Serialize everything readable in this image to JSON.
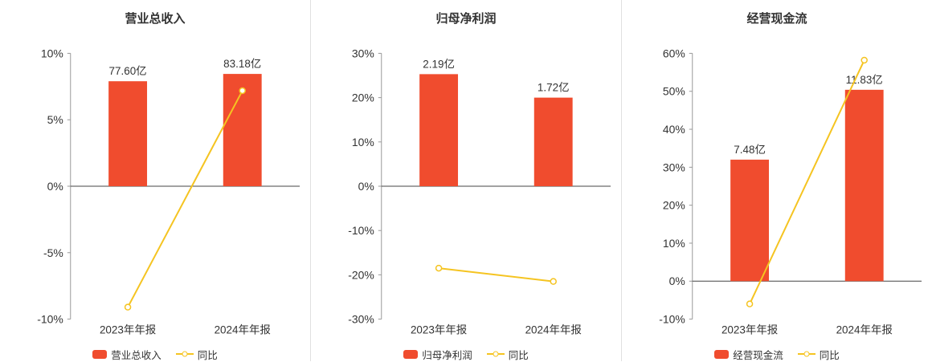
{
  "colors": {
    "bar": "#f04c2e",
    "line": "#f5c421",
    "text": "#333333",
    "axis": "#999999",
    "zero_line": "#444444",
    "divider": "#e0e0e0",
    "background": "#ffffff"
  },
  "chart_data": [
    {
      "type": "bar",
      "title": "营业总收入",
      "categories": [
        "2023年年报",
        "2024年年报"
      ],
      "bar_series": {
        "name": "营业总收入",
        "unit": "亿",
        "values": [
          77.6,
          83.18
        ],
        "labels": [
          "77.60亿",
          "83.18亿"
        ],
        "plotted_axis_pct": [
          7.9,
          8.45
        ]
      },
      "line_series": {
        "name": "同比",
        "values_pct": [
          -9.1,
          7.19
        ]
      },
      "ylim": [
        -10,
        10
      ],
      "yticks_pct": [
        10,
        5,
        0,
        -5,
        -10
      ],
      "grid": false,
      "legend_position": "bottom"
    },
    {
      "type": "bar",
      "title": "归母净利润",
      "categories": [
        "2023年年报",
        "2024年年报"
      ],
      "bar_series": {
        "name": "归母净利润",
        "unit": "亿",
        "values": [
          2.19,
          1.72
        ],
        "labels": [
          "2.19亿",
          "1.72亿"
        ],
        "plotted_axis_pct": [
          25.3,
          20.0
        ]
      },
      "line_series": {
        "name": "同比",
        "values_pct": [
          -18.5,
          -21.5
        ]
      },
      "ylim": [
        -30,
        30
      ],
      "yticks_pct": [
        30,
        20,
        10,
        0,
        -10,
        -20,
        -30
      ],
      "grid": false,
      "legend_position": "bottom"
    },
    {
      "type": "bar",
      "title": "经营现金流",
      "categories": [
        "2023年年报",
        "2024年年报"
      ],
      "bar_series": {
        "name": "经营现金流",
        "unit": "亿",
        "values": [
          7.48,
          11.83
        ],
        "labels": [
          "7.48亿",
          "11.83亿"
        ],
        "plotted_axis_pct": [
          32.0,
          50.4
        ]
      },
      "line_series": {
        "name": "同比",
        "values_pct": [
          -6.0,
          58.2
        ]
      },
      "ylim": [
        -10,
        60
      ],
      "yticks_pct": [
        60,
        50,
        40,
        30,
        20,
        10,
        0,
        -10
      ],
      "grid": false,
      "legend_position": "bottom"
    }
  ]
}
